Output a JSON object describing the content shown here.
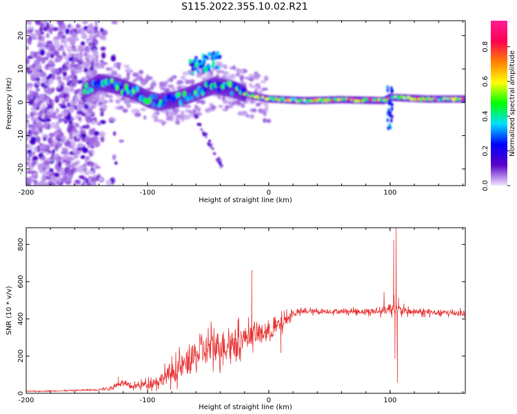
{
  "title": "S115.2022.355.10.02.R21",
  "chart_data": [
    {
      "type": "heatmap",
      "xlabel": "Height of straight line (km)",
      "ylabel": "Frequency (Hz)",
      "xlim": [
        -200,
        162
      ],
      "ylim": [
        -25,
        24.5
      ],
      "xticks": [
        -200,
        -100,
        0,
        100
      ],
      "yticks": [
        -20,
        -10,
        0,
        10,
        20
      ],
      "colorbar": {
        "label": "Normalized spectral amplitude",
        "range": [
          0,
          0.95
        ],
        "ticks": [
          "0.0",
          "0.2",
          "0.4",
          "0.6",
          "0.8"
        ],
        "tick_values": [
          0,
          0.2,
          0.4,
          0.6,
          0.8
        ],
        "colors": [
          "#f0e6ff",
          "#5a00c8",
          "#0000ff",
          "#00e0ff",
          "#00ff00",
          "#ffff00",
          "#ff8000",
          "#ff0050",
          "#ff1e96"
        ]
      },
      "ridge": [
        {
          "x": -152,
          "f": 3.5
        },
        {
          "x": -140,
          "f": 6
        },
        {
          "x": -125,
          "f": 5
        },
        {
          "x": -110,
          "f": 3
        },
        {
          "x": -100,
          "f": 1
        },
        {
          "x": -90,
          "f": 0
        },
        {
          "x": -75,
          "f": 1
        },
        {
          "x": -60,
          "f": 3
        },
        {
          "x": -45,
          "f": 5
        },
        {
          "x": -30,
          "f": 4
        },
        {
          "x": -15,
          "f": 2
        },
        {
          "x": 0,
          "f": 1
        },
        {
          "x": 30,
          "f": 0.5
        },
        {
          "x": 60,
          "f": 0.8
        },
        {
          "x": 95,
          "f": 0.5
        },
        {
          "x": 100,
          "f": 1.5
        },
        {
          "x": 130,
          "f": 1
        },
        {
          "x": 162,
          "f": 1
        }
      ]
    },
    {
      "type": "line",
      "xlabel": "Height of straight line (km)",
      "ylabel": "SNR (10 * v/v)",
      "xlim": [
        -200,
        162
      ],
      "ylim": [
        0,
        890
      ],
      "xticks": [
        -200,
        -100,
        0,
        100
      ],
      "yticks": [
        0,
        200,
        400,
        600,
        800
      ],
      "series": [
        {
          "color": "#e83030",
          "x": [
            -200,
            -180,
            -160,
            -140,
            -130,
            -121,
            -115,
            -100,
            -90,
            -80,
            -70,
            -60,
            -50,
            -40,
            -30,
            -20,
            -10,
            0,
            10,
            20,
            30,
            50,
            70,
            90,
            98,
            103,
            105,
            108,
            115,
            130,
            162
          ],
          "y": [
            10,
            12,
            15,
            20,
            28,
            60,
            35,
            50,
            70,
            110,
            150,
            200,
            240,
            260,
            270,
            300,
            320,
            330,
            370,
            430,
            440,
            440,
            440,
            440,
            450,
            470,
            450,
            445,
            440,
            435,
            430
          ],
          "noise": [
            3,
            3,
            4,
            6,
            10,
            15,
            15,
            25,
            40,
            60,
            80,
            90,
            100,
            100,
            90,
            70,
            60,
            55,
            50,
            20,
            15,
            15,
            15,
            20,
            30,
            40,
            40,
            30,
            20,
            18,
            18
          ]
        }
      ],
      "spikes": [
        {
          "x": -124,
          "y": 85
        },
        {
          "x": -14,
          "y": 660
        },
        {
          "x": 10,
          "y": 220
        },
        {
          "x": 95,
          "y": 540
        },
        {
          "x": 100,
          "y": 470
        },
        {
          "x": 103,
          "y": 820
        },
        {
          "x": 104,
          "y": 190
        },
        {
          "x": 105,
          "y": 890
        },
        {
          "x": 106,
          "y": 60
        },
        {
          "x": 107,
          "y": 510
        }
      ]
    }
  ]
}
